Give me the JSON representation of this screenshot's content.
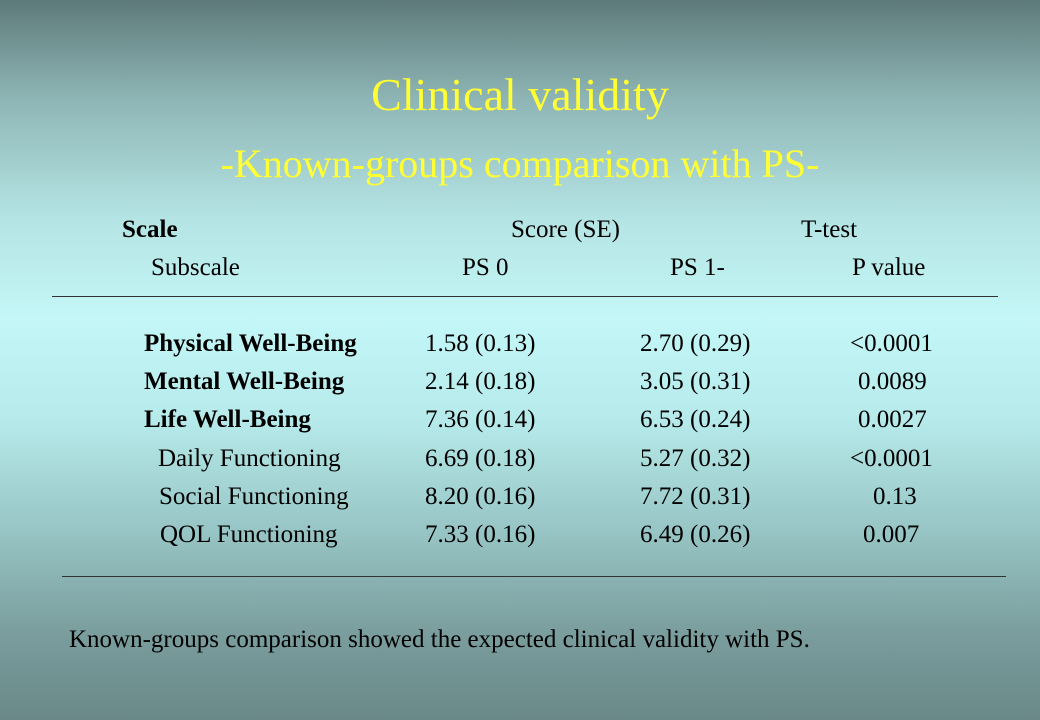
{
  "title": "Clinical validity",
  "subtitle": "-Known-groups comparison with PS-",
  "table": {
    "header_row1": {
      "scale": "Scale",
      "score": "Score (SE)",
      "ttest": "T-test"
    },
    "header_row2": {
      "subscale": "Subscale",
      "ps0": "PS 0",
      "ps1": "PS 1-",
      "pvalue": "P value"
    },
    "rows": [
      {
        "label": "Physical Well-Being",
        "ps0": "1.58 (0.13)",
        "ps1": "2.70 (0.29)",
        "p": "<0.0001"
      },
      {
        "label": "Mental Well-Being",
        "ps0": "2.14 (0.18)",
        "ps1": "3.05 (0.31)",
        "p": "0.0089"
      },
      {
        "label": "Life Well-Being",
        "ps0": "7.36 (0.14)",
        "ps1": "6.53 (0.24)",
        "p": "0.0027"
      },
      {
        "label": "Daily Functioning",
        "ps0": "6.69 (0.18)",
        "ps1": "5.27 (0.32)",
        "p": "<0.0001"
      },
      {
        "label": "Social Functioning",
        "ps0": "8.20 (0.16)",
        "ps1": "7.72 (0.31)",
        "p": "0.13"
      },
      {
        "label": "QOL Functioning",
        "ps0": "7.33 (0.16)",
        "ps1": "6.49 (0.26)",
        "p": "0.007"
      }
    ]
  },
  "footnote": "Known-groups comparison showed the expected clinical validity with PS."
}
